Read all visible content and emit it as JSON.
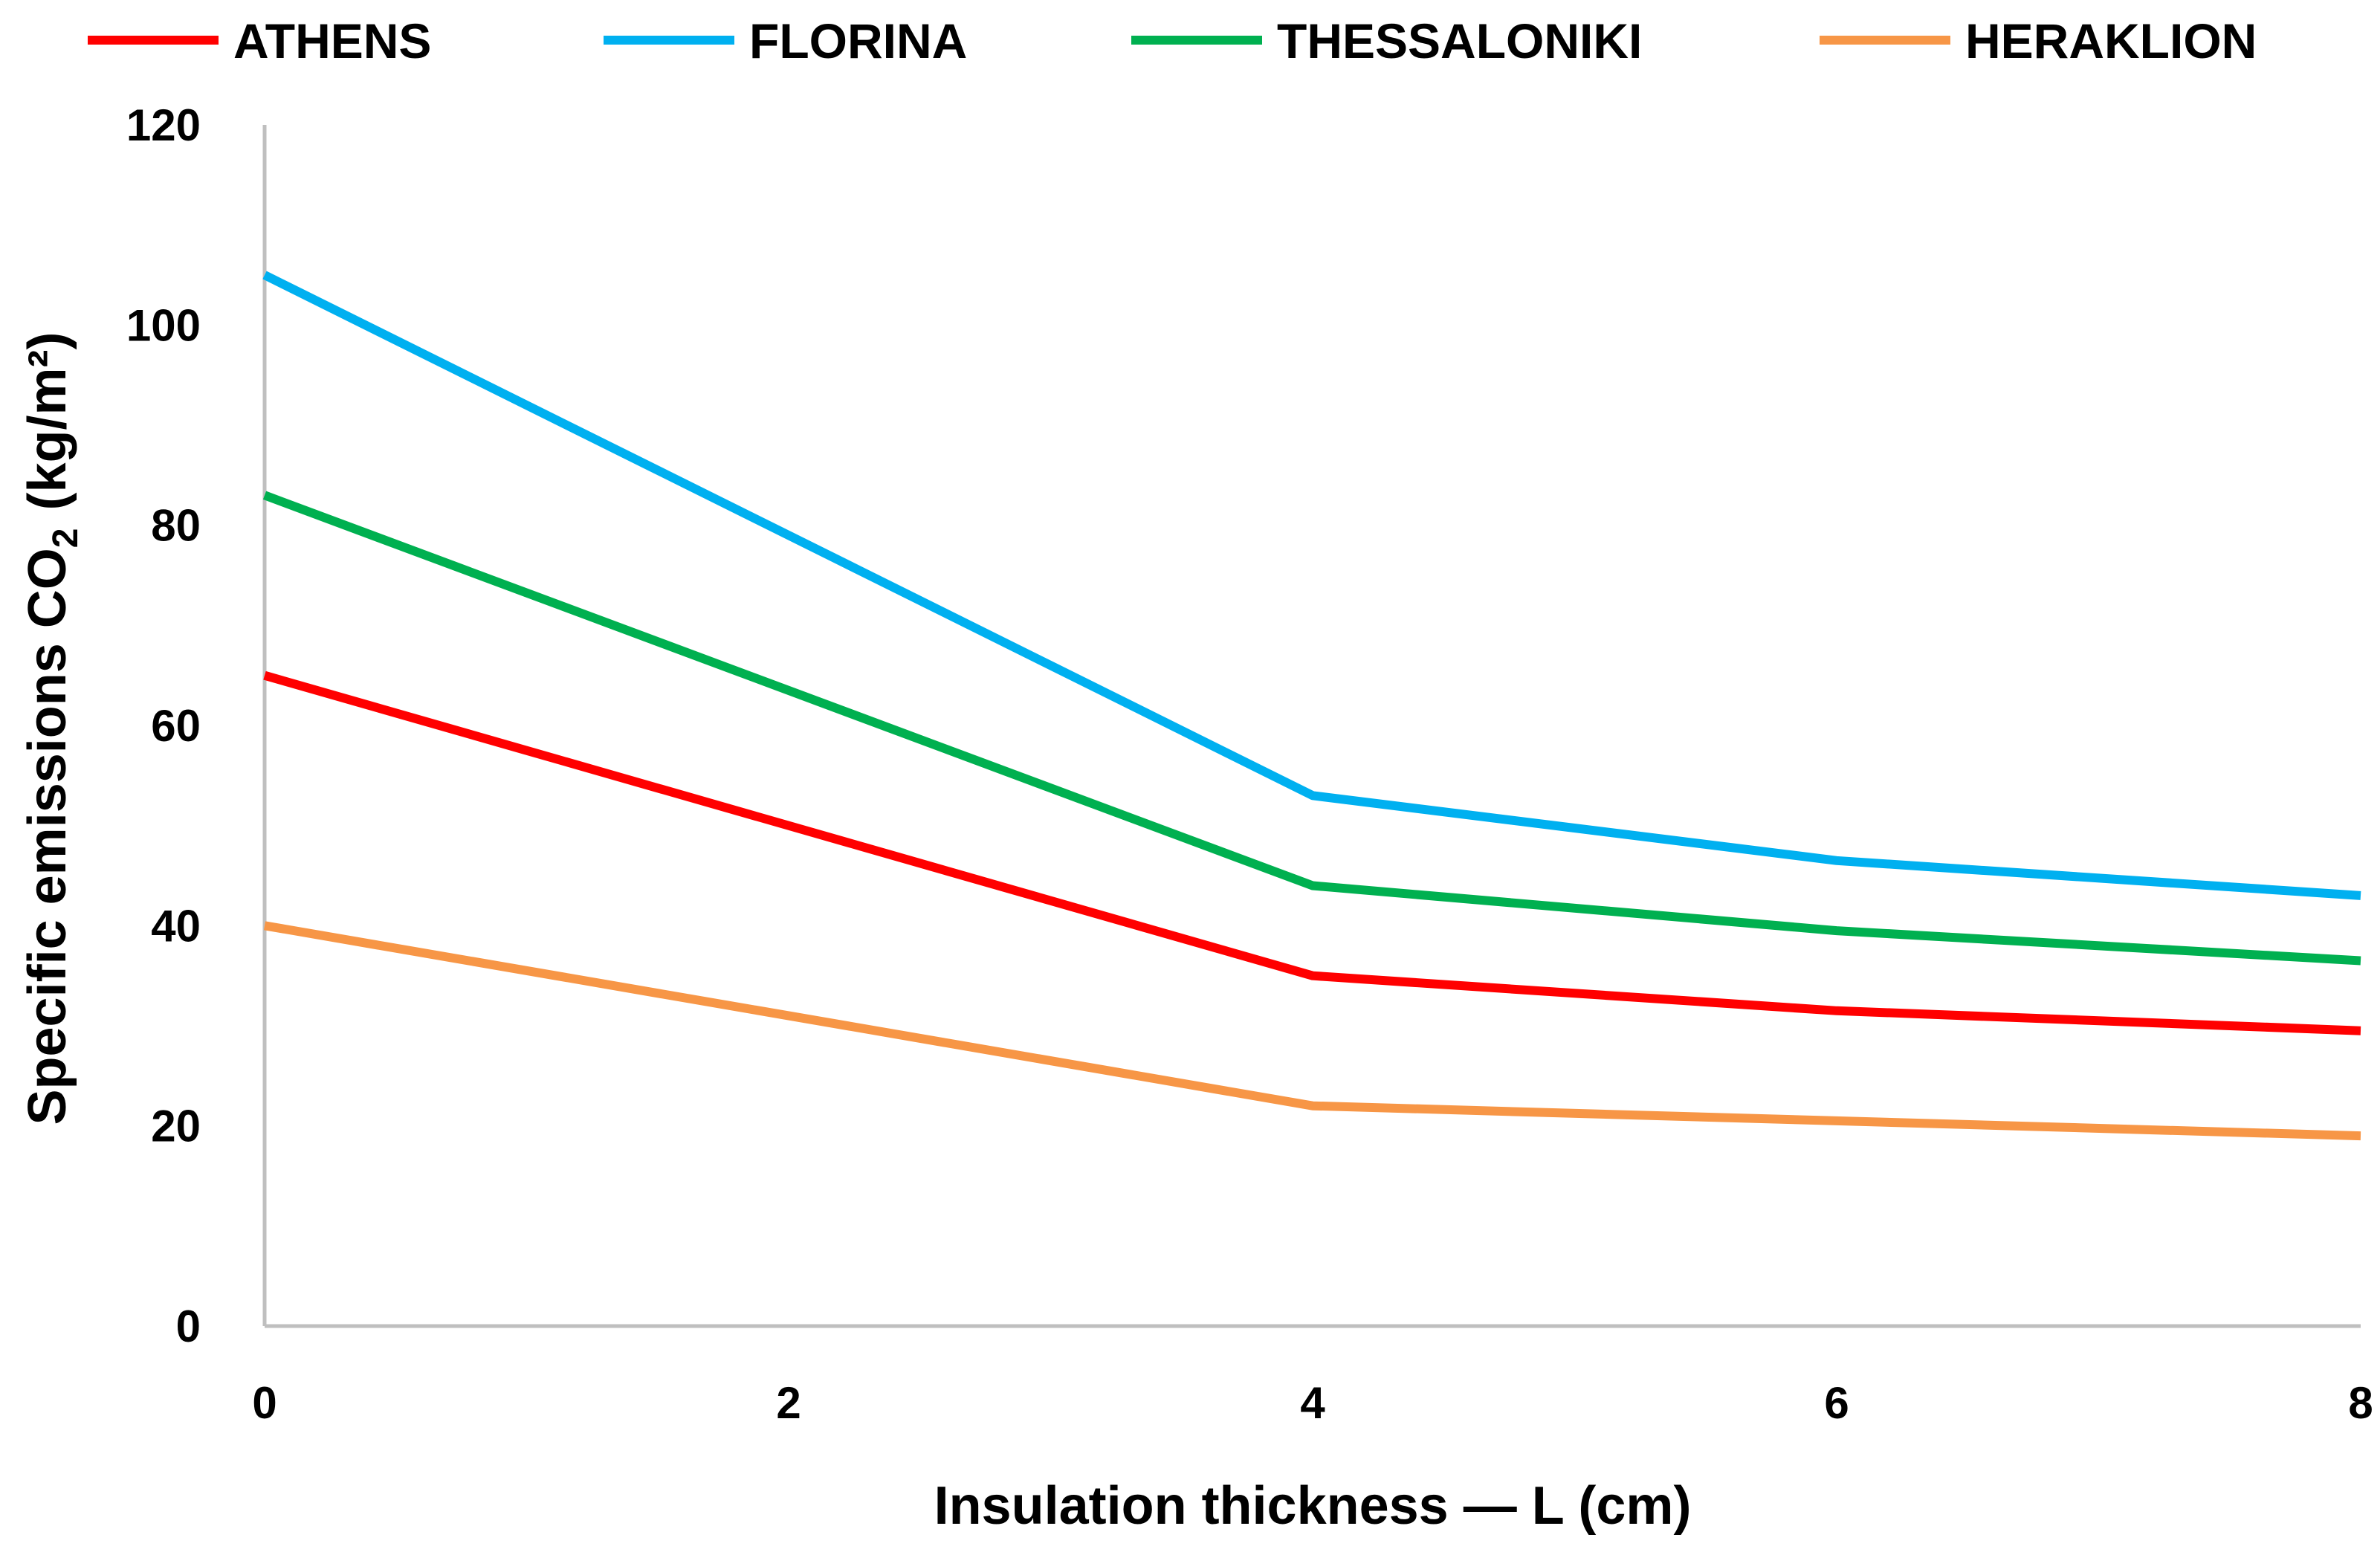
{
  "chart_data": {
    "type": "line",
    "title": "",
    "xlabel": "Insulation thickness — L (cm)",
    "ylabel": {
      "prefix": "Specific emissions CO",
      "subscript": "2",
      "unit": "(kg/m²)"
    },
    "x": [
      0,
      4,
      6,
      8
    ],
    "xlim": [
      0,
      8
    ],
    "ylim": [
      0,
      120
    ],
    "xticks": [
      "0",
      "2",
      "4",
      "6",
      "8"
    ],
    "yticks": [
      "0",
      "20",
      "40",
      "60",
      "80",
      "100",
      "120"
    ],
    "grid": false,
    "legend_position": "top",
    "series": [
      {
        "name": "ATHENS",
        "color": "#ff0000",
        "values": [
          65,
          35,
          31.5,
          29.5
        ]
      },
      {
        "name": "FLORINA",
        "color": "#00b0f0",
        "values": [
          105,
          53,
          46.5,
          43
        ]
      },
      {
        "name": "THESSALONIKI",
        "color": "#00b050",
        "values": [
          83,
          44,
          39.5,
          36.5
        ]
      },
      {
        "name": "HERAKLION",
        "color": "#f79646",
        "values": [
          40,
          22,
          20.5,
          19
        ]
      }
    ]
  }
}
